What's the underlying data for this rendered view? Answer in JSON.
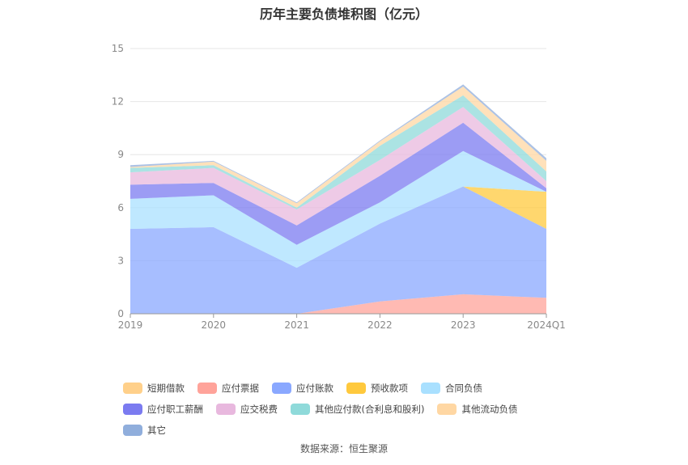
{
  "title": "历年主要负债堆积图（亿元）",
  "source": "数据来源：恒生聚源",
  "chart_data": {
    "type": "area",
    "stacked": true,
    "title": "历年主要负债堆积图（亿元）",
    "categories": [
      "2019",
      "2020",
      "2021",
      "2022",
      "2023",
      "2024Q1"
    ],
    "ylim": [
      0,
      15
    ],
    "yticks": [
      0,
      3,
      6,
      9,
      12,
      15
    ],
    "grid": true,
    "legend_position": "bottom",
    "series": [
      {
        "name": "短期借款",
        "color": "#FFD08A",
        "values": [
          0,
          0,
          0,
          0,
          0,
          0
        ]
      },
      {
        "name": "应付票据",
        "color": "#FFA39A",
        "values": [
          0,
          0,
          0,
          0.7,
          1.1,
          0.9
        ]
      },
      {
        "name": "应付账款",
        "color": "#8AA8FF",
        "values": [
          4.8,
          4.9,
          2.6,
          4.4,
          6.1,
          3.9
        ]
      },
      {
        "name": "预收款项",
        "color": "#FFC93D",
        "values": [
          0,
          0,
          0,
          0,
          0,
          2.1
        ]
      },
      {
        "name": "合同负债",
        "color": "#A9E0FF",
        "values": [
          1.7,
          1.8,
          1.3,
          1.2,
          2.0,
          0
        ]
      },
      {
        "name": "应付职工薪酬",
        "color": "#7B7BF0",
        "values": [
          0.8,
          0.7,
          1.1,
          1.5,
          1.6,
          0.2
        ]
      },
      {
        "name": "应交税费",
        "color": "#E8B8DE",
        "values": [
          0.7,
          0.85,
          0.9,
          0.9,
          0.9,
          0.4
        ]
      },
      {
        "name": "其他应付款(合利息和股利)",
        "color": "#8FDADA",
        "values": [
          0.25,
          0.15,
          0.1,
          0.8,
          0.65,
          0.55
        ]
      },
      {
        "name": "其他流动负债",
        "color": "#FFD7A3",
        "values": [
          0.05,
          0.2,
          0.25,
          0.25,
          0.5,
          0.6
        ]
      },
      {
        "name": "其它",
        "color": "#90AEDC",
        "values": [
          0.1,
          0.05,
          0.05,
          0.05,
          0.12,
          0.15
        ]
      }
    ]
  }
}
